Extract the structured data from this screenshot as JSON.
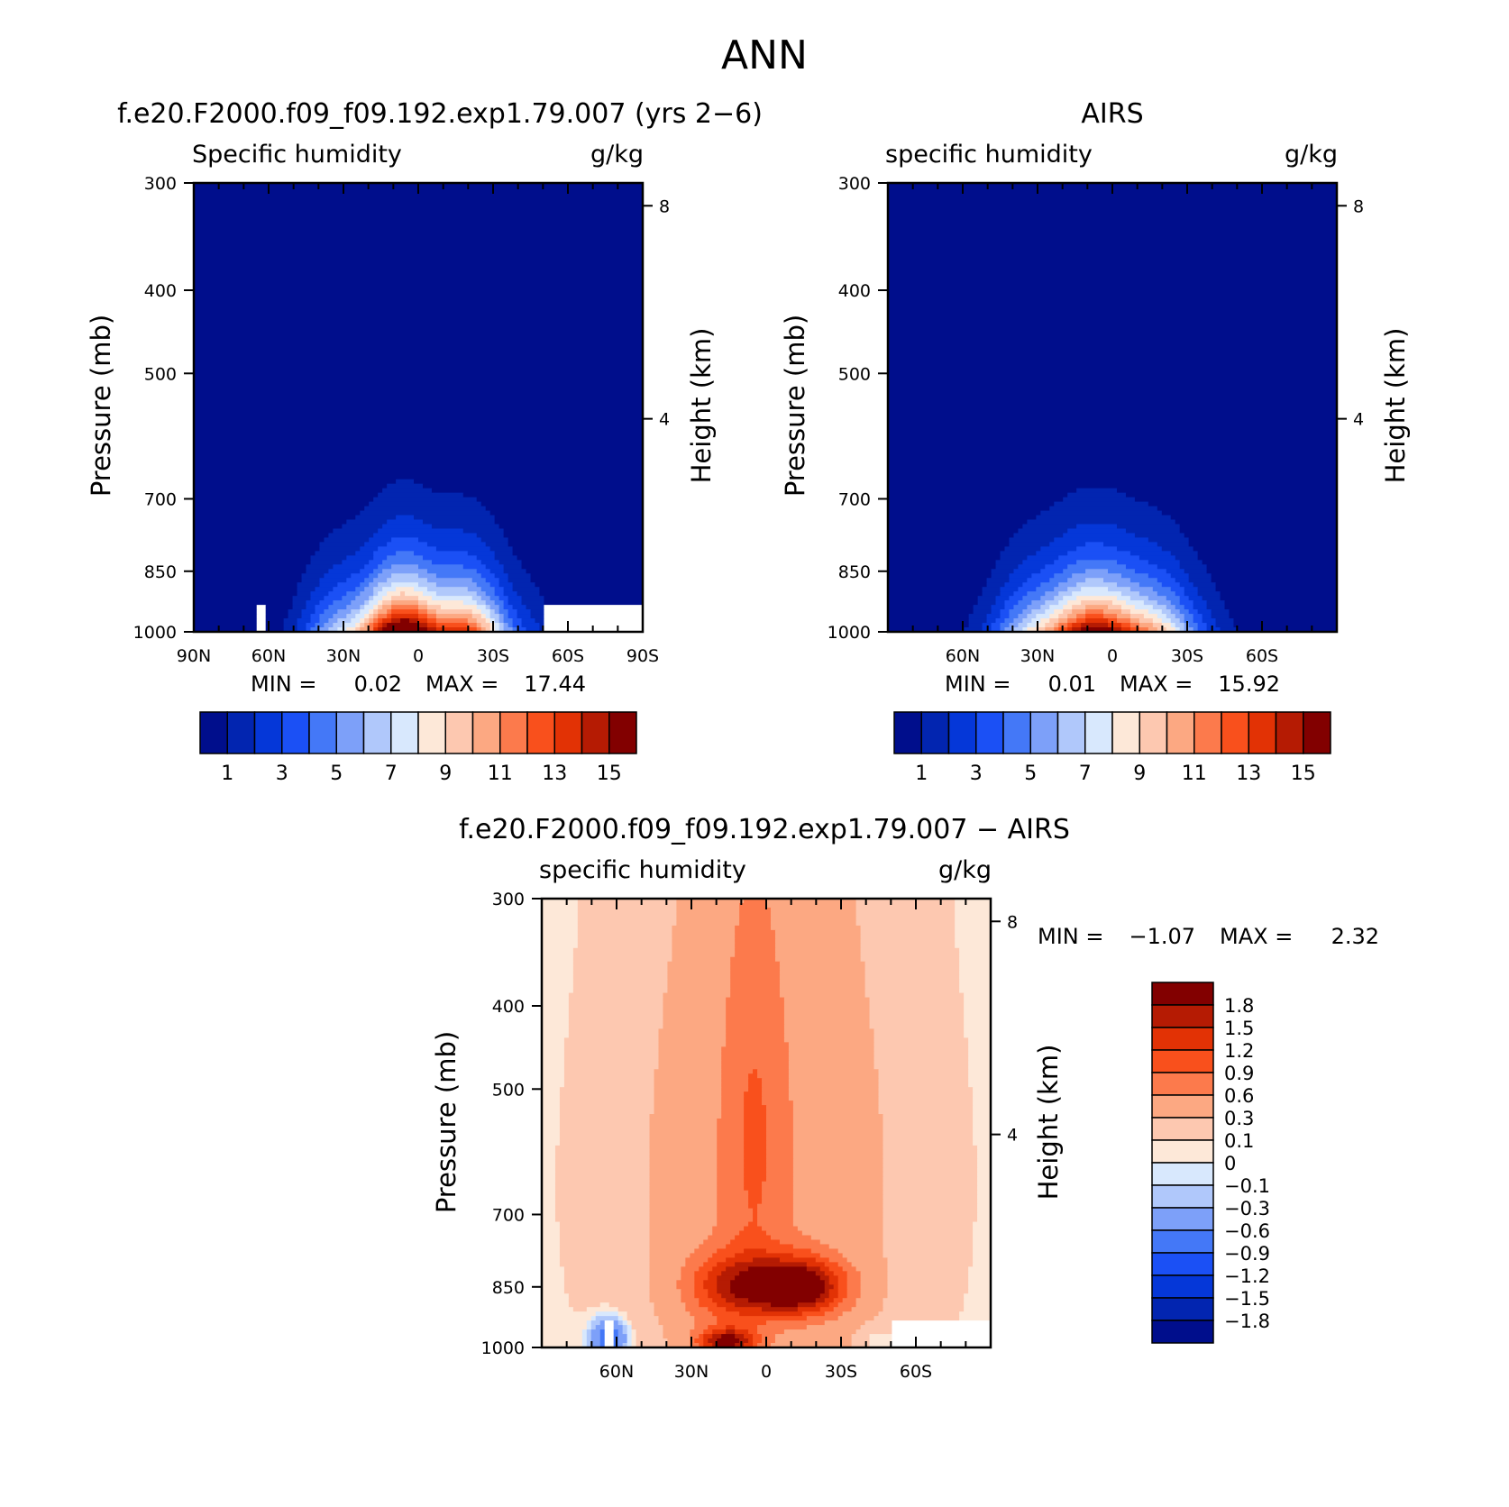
{
  "page_title": "ANN",
  "chart_data": [
    {
      "type": "heatmap",
      "id": "model",
      "title": "f.e20.F2000.f09_f09.192.exp1.79.007 (yrs 2−6)",
      "subtitle_left": "Specific humidity",
      "subtitle_right": "g/kg",
      "ylabel": "Pressure (mb)",
      "ylabel_right": "Height (km)",
      "xlim": [
        90,
        -90
      ],
      "ylim": [
        1000,
        300
      ],
      "x_ticks": [
        {
          "value": 90,
          "label": "90N"
        },
        {
          "value": 60,
          "label": "60N"
        },
        {
          "value": 30,
          "label": "30N"
        },
        {
          "value": 0,
          "label": "0"
        },
        {
          "value": -30,
          "label": "30S"
        },
        {
          "value": -60,
          "label": "60S"
        },
        {
          "value": -90,
          "label": "90S"
        }
      ],
      "y_ticks": [
        {
          "value": 300,
          "label": "300"
        },
        {
          "value": 400,
          "label": "400"
        },
        {
          "value": 500,
          "label": "500"
        },
        {
          "value": 700,
          "label": "700"
        },
        {
          "value": 850,
          "label": "850"
        },
        {
          "value": 1000,
          "label": "1000"
        }
      ],
      "height_ticks": [
        {
          "value": 8,
          "label": "8"
        },
        {
          "value": 4,
          "label": "4"
        }
      ],
      "min_label": "MIN =",
      "min_value": "0.02",
      "max_label": "MAX =",
      "max_value": "17.44",
      "levels": [
        1,
        2,
        3,
        4,
        5,
        6,
        7,
        8,
        9,
        10,
        11,
        12,
        13,
        14,
        15
      ],
      "colorbar_labels": [
        "1",
        "3",
        "5",
        "7",
        "9",
        "11",
        "13",
        "15"
      ],
      "colors": [
        "#000e8c",
        "#0225b0",
        "#0537d8",
        "#1b50f5",
        "#4478f7",
        "#7da0f9",
        "#b0c8fb",
        "#d8e8fd",
        "#fde8d8",
        "#fdc8b0",
        "#fca882",
        "#fc7a4c",
        "#f9501c",
        "#e23205",
        "#b51b03",
        "#820000"
      ],
      "peak": {
        "lat": 0,
        "value": 17.44
      },
      "missing": {
        "north_lat": 63,
        "south_lat": -50,
        "surface_top": 925
      }
    },
    {
      "type": "heatmap",
      "id": "obs",
      "title": "AIRS",
      "subtitle_left": "specific humidity",
      "subtitle_right": "g/kg",
      "ylabel": "Pressure (mb)",
      "ylabel_right": "Height (km)",
      "xlim": [
        90,
        -90
      ],
      "ylim": [
        1000,
        300
      ],
      "x_ticks": [
        {
          "value": 60,
          "label": "60N"
        },
        {
          "value": 30,
          "label": "30N"
        },
        {
          "value": 0,
          "label": "0"
        },
        {
          "value": -30,
          "label": "30S"
        },
        {
          "value": -60,
          "label": "60S"
        }
      ],
      "y_ticks": [
        {
          "value": 300,
          "label": "300"
        },
        {
          "value": 400,
          "label": "400"
        },
        {
          "value": 500,
          "label": "500"
        },
        {
          "value": 700,
          "label": "700"
        },
        {
          "value": 850,
          "label": "850"
        },
        {
          "value": 1000,
          "label": "1000"
        }
      ],
      "height_ticks": [
        {
          "value": 8,
          "label": "8"
        },
        {
          "value": 4,
          "label": "4"
        }
      ],
      "min_label": "MIN =",
      "min_value": "0.01",
      "max_label": "MAX =",
      "max_value": "15.92",
      "levels": [
        1,
        2,
        3,
        4,
        5,
        6,
        7,
        8,
        9,
        10,
        11,
        12,
        13,
        14,
        15
      ],
      "colorbar_labels": [
        "1",
        "3",
        "5",
        "7",
        "9",
        "11",
        "13",
        "15"
      ],
      "colors": [
        "#000e8c",
        "#0225b0",
        "#0537d8",
        "#1b50f5",
        "#4478f7",
        "#7da0f9",
        "#b0c8fb",
        "#d8e8fd",
        "#fde8d8",
        "#fdc8b0",
        "#fca882",
        "#fc7a4c",
        "#f9501c",
        "#e23205",
        "#b51b03",
        "#820000"
      ],
      "peak": {
        "lat": 5,
        "value": 15.92
      }
    },
    {
      "type": "heatmap",
      "id": "diff",
      "title": "f.e20.F2000.f09_f09.192.exp1.79.007 − AIRS",
      "subtitle_left": "specific humidity",
      "subtitle_right": "g/kg",
      "ylabel": "Pressure (mb)",
      "ylabel_right": "Height (km)",
      "xlim": [
        90,
        -90
      ],
      "ylim": [
        1000,
        300
      ],
      "x_ticks": [
        {
          "value": 60,
          "label": "60N"
        },
        {
          "value": 30,
          "label": "30N"
        },
        {
          "value": 0,
          "label": "0"
        },
        {
          "value": -30,
          "label": "30S"
        },
        {
          "value": -60,
          "label": "60S"
        }
      ],
      "y_ticks": [
        {
          "value": 300,
          "label": "300"
        },
        {
          "value": 400,
          "label": "400"
        },
        {
          "value": 500,
          "label": "500"
        },
        {
          "value": 700,
          "label": "700"
        },
        {
          "value": 850,
          "label": "850"
        },
        {
          "value": 1000,
          "label": "1000"
        }
      ],
      "height_ticks": [
        {
          "value": 8,
          "label": "8"
        },
        {
          "value": 4,
          "label": "4"
        }
      ],
      "min_label": "MIN =",
      "min_value": "−1.07",
      "max_label": "MAX =",
      "max_value": "2.32",
      "levels": [
        -1.8,
        -1.5,
        -1.2,
        -0.9,
        -0.6,
        -0.3,
        -0.1,
        0,
        0.1,
        0.3,
        0.6,
        0.9,
        1.2,
        1.5,
        1.8
      ],
      "colorbar_labels": [
        "1.8",
        "1.5",
        "1.2",
        "0.9",
        "0.6",
        "0.3",
        "0.1",
        "0",
        "−0.1",
        "−0.3",
        "−0.6",
        "−0.9",
        "−1.2",
        "−1.5",
        "−1.8"
      ],
      "colors": [
        "#820000",
        "#b51b03",
        "#e23205",
        "#f9501c",
        "#fc7a4c",
        "#fca882",
        "#fdc8b0",
        "#fde8d8",
        "#d8e8fd",
        "#b0c8fb",
        "#7da0f9",
        "#4478f7",
        "#1b50f5",
        "#0537d8",
        "#0225b0",
        "#000e8c"
      ],
      "missing": {
        "north_lat": 63,
        "south_lat": -50,
        "surface_top": 925
      }
    }
  ]
}
